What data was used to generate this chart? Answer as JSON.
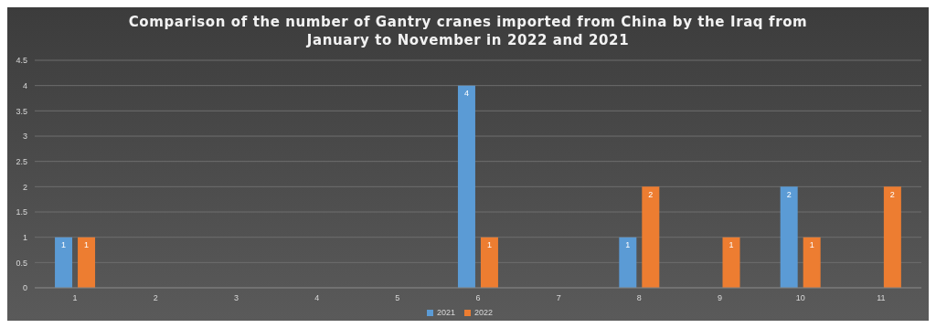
{
  "chart_data": {
    "type": "bar",
    "title": "Comparison of the number of Gantry cranes imported from China by the Iraq from January to November in 2022 and 2021",
    "categories": [
      "1",
      "2",
      "3",
      "4",
      "5",
      "6",
      "7",
      "8",
      "9",
      "10",
      "11"
    ],
    "series": [
      {
        "name": "2021",
        "color": "#5b9bd5",
        "values": [
          1,
          null,
          null,
          null,
          null,
          4,
          null,
          1,
          null,
          2,
          null
        ]
      },
      {
        "name": "2022",
        "color": "#ed7d31",
        "values": [
          1,
          null,
          null,
          null,
          null,
          1,
          null,
          2,
          1,
          1,
          2
        ]
      }
    ],
    "ylim": [
      0,
      4.5
    ],
    "yticks": [
      0,
      0.5,
      1,
      1.5,
      2,
      2.5,
      3,
      3.5,
      4,
      4.5
    ],
    "grid": "y",
    "legend": "bottom",
    "data_labels": true
  }
}
